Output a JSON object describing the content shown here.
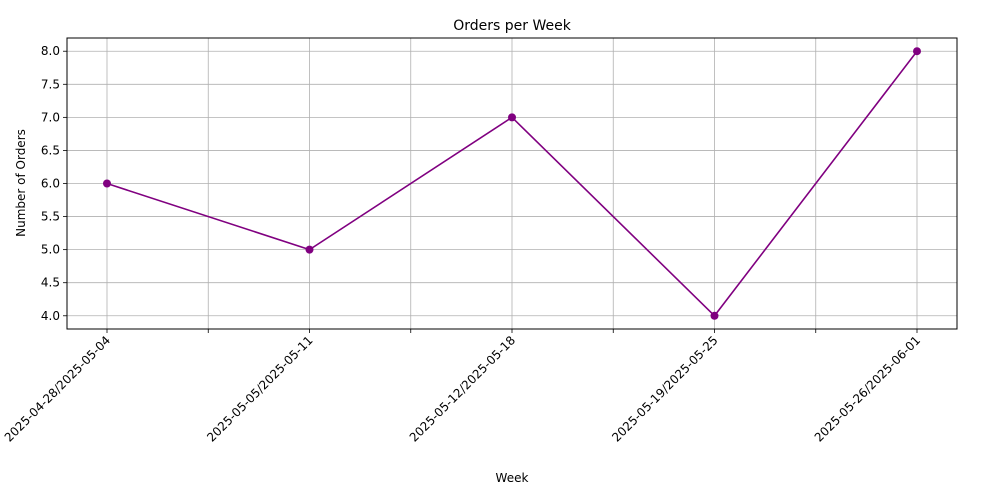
{
  "chart_data": {
    "type": "line",
    "title": "Orders per Week",
    "xlabel": "Week",
    "ylabel": "Number of Orders",
    "categories": [
      "2025-04-28/2025-05-04",
      "2025-05-05/2025-05-11",
      "2025-05-12/2025-05-18",
      "2025-05-19/2025-05-25",
      "2025-05-26/2025-06-01"
    ],
    "values": [
      6,
      5,
      7,
      4,
      8
    ],
    "ylim": [
      3.8,
      8.2
    ],
    "yticks": [
      "4.0",
      "4.5",
      "5.0",
      "5.5",
      "6.0",
      "6.5",
      "7.0",
      "7.5",
      "8.0"
    ],
    "marker": "circle",
    "grid": true,
    "legend": "none",
    "colors": {
      "line": "#800080",
      "grid": "#b0b0b0",
      "axis": "#000000"
    }
  }
}
